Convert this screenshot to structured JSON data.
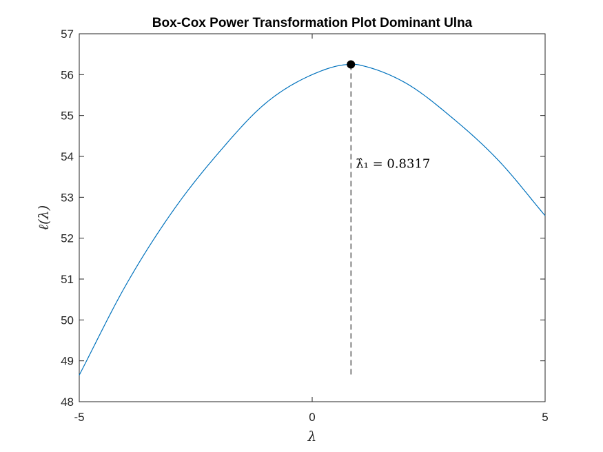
{
  "chart_data": {
    "type": "line",
    "title": "Box-Cox Power Transformation Plot Dominant Ulna",
    "xlabel": "λ",
    "ylabel": "ℓ(λ)",
    "xlim": [
      -5,
      5
    ],
    "ylim": [
      48,
      57
    ],
    "xticks": [
      -5,
      0,
      5
    ],
    "yticks": [
      48,
      49,
      50,
      51,
      52,
      53,
      54,
      55,
      56,
      57
    ],
    "grid": false,
    "series": [
      {
        "color": "#0072BD",
        "x": [
          -5,
          -4,
          -3,
          -2,
          -1,
          0,
          0.8317,
          1,
          2,
          3,
          4,
          5
        ],
        "y": [
          48.65,
          50.85,
          52.65,
          54.1,
          55.3,
          56.0,
          56.25,
          56.24,
          55.8,
          54.95,
          53.9,
          52.55
        ]
      }
    ],
    "optimum": {
      "x": 0.8317,
      "y": 56.25,
      "marker_color": "#000000",
      "line_bottom_y": 48.65,
      "annotation": "λ̂₁ = 0.8317"
    }
  }
}
